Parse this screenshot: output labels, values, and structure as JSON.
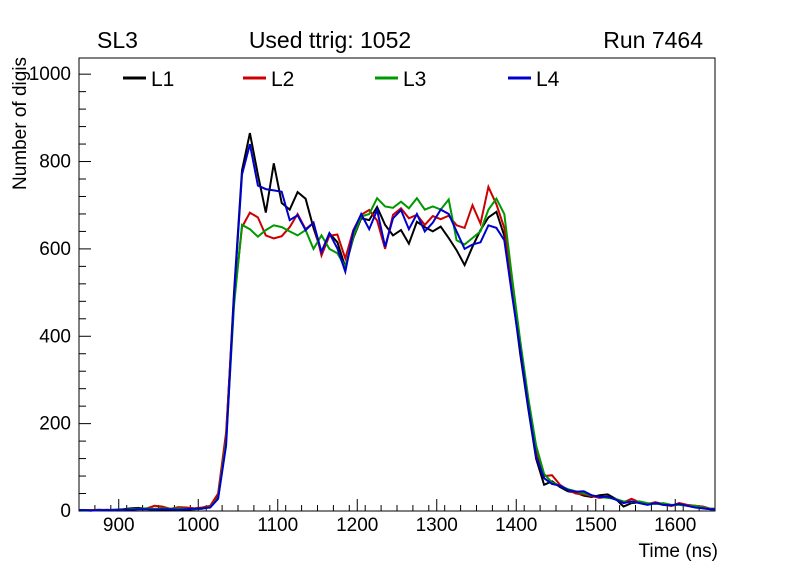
{
  "header": {
    "left": "SL3",
    "center": "Used ttrig: 1052",
    "right": "Run 7464"
  },
  "legend": [
    {
      "label": "L1",
      "color": "#000000"
    },
    {
      "label": "L2",
      "color": "#cc0000"
    },
    {
      "label": "L3",
      "color": "#009900"
    },
    {
      "label": "L4",
      "color": "#0000cc"
    }
  ],
  "chart_data": {
    "type": "line",
    "title": "Used ttrig: 1052",
    "xlabel": "Time (ns)",
    "ylabel": "Number of digis",
    "xlim": [
      850,
      1650
    ],
    "ylim": [
      0,
      1037
    ],
    "x_ticks": [
      900,
      1000,
      1100,
      1200,
      1300,
      1400,
      1500,
      1600
    ],
    "y_ticks": [
      0,
      200,
      400,
      600,
      800,
      1000
    ],
    "x_minor_step": 20,
    "y_minor_step": 40,
    "grid": false,
    "legend_position": "top-inside",
    "x": [
      855,
      865,
      875,
      885,
      895,
      905,
      915,
      925,
      935,
      945,
      955,
      965,
      975,
      985,
      995,
      1005,
      1015,
      1025,
      1035,
      1045,
      1055,
      1065,
      1075,
      1085,
      1095,
      1105,
      1115,
      1125,
      1135,
      1145,
      1155,
      1165,
      1175,
      1185,
      1195,
      1205,
      1215,
      1225,
      1235,
      1245,
      1255,
      1265,
      1275,
      1285,
      1295,
      1305,
      1315,
      1325,
      1335,
      1345,
      1355,
      1365,
      1375,
      1385,
      1395,
      1405,
      1415,
      1425,
      1435,
      1445,
      1455,
      1465,
      1475,
      1485,
      1495,
      1505,
      1515,
      1525,
      1535,
      1545,
      1555,
      1565,
      1575,
      1585,
      1595,
      1605,
      1615,
      1625,
      1635,
      1645
    ],
    "series": [
      {
        "name": "L1",
        "color": "#000000",
        "values": [
          2,
          2,
          3,
          2,
          3,
          4,
          6,
          7,
          5,
          4,
          3,
          3,
          4,
          3,
          4,
          5,
          10,
          35,
          170,
          500,
          780,
          865,
          770,
          683,
          796,
          705,
          690,
          730,
          715,
          648,
          593,
          636,
          615,
          558,
          625,
          670,
          666,
          696,
          655,
          631,
          643,
          612,
          662,
          650,
          640,
          651,
          625,
          597,
          563,
          605,
          643,
          672,
          685,
          630,
          500,
          360,
          235,
          120,
          60,
          68,
          55,
          45,
          42,
          35,
          32,
          36,
          38,
          28,
          10,
          18,
          20,
          15,
          20,
          16,
          12,
          16,
          13,
          10,
          6,
          4
        ]
      },
      {
        "name": "L2",
        "color": "#cc0000",
        "values": [
          1,
          2,
          2,
          3,
          2,
          3,
          4,
          5,
          6,
          12,
          10,
          5,
          9,
          8,
          6,
          8,
          12,
          40,
          180,
          480,
          650,
          683,
          672,
          631,
          624,
          629,
          650,
          680,
          645,
          660,
          585,
          630,
          633,
          578,
          643,
          678,
          689,
          665,
          600,
          678,
          693,
          670,
          678,
          655,
          675,
          668,
          676,
          654,
          648,
          700,
          658,
          742,
          702,
          648,
          520,
          385,
          255,
          140,
          80,
          82,
          60,
          48,
          40,
          38,
          34,
          30,
          32,
          26,
          20,
          28,
          20,
          16,
          20,
          14,
          12,
          18,
          14,
          12,
          10,
          5
        ]
      },
      {
        "name": "L3",
        "color": "#009900",
        "values": [
          1,
          1,
          2,
          2,
          3,
          3,
          4,
          5,
          6,
          5,
          6,
          5,
          6,
          5,
          4,
          6,
          9,
          30,
          160,
          470,
          655,
          645,
          628,
          643,
          654,
          650,
          640,
          631,
          643,
          600,
          631,
          600,
          590,
          559,
          628,
          674,
          680,
          716,
          697,
          694,
          708,
          693,
          716,
          690,
          697,
          690,
          713,
          620,
          610,
          625,
          640,
          690,
          715,
          680,
          530,
          390,
          260,
          150,
          85,
          65,
          58,
          50,
          45,
          40,
          36,
          32,
          30,
          28,
          22,
          20,
          22,
          18,
          16,
          18,
          14,
          14,
          12,
          12,
          8,
          5
        ]
      },
      {
        "name": "L4",
        "color": "#0000cc",
        "values": [
          2,
          1,
          2,
          2,
          2,
          3,
          3,
          4,
          4,
          3,
          4,
          4,
          3,
          4,
          5,
          6,
          8,
          28,
          150,
          490,
          770,
          840,
          745,
          737,
          734,
          731,
          666,
          677,
          643,
          660,
          593,
          636,
          601,
          548,
          640,
          680,
          645,
          689,
          605,
          670,
          689,
          645,
          680,
          640,
          660,
          690,
          680,
          640,
          600,
          610,
          615,
          654,
          648,
          620,
          490,
          370,
          240,
          125,
          75,
          62,
          58,
          48,
          44,
          45,
          36,
          32,
          33,
          26,
          18,
          22,
          18,
          14,
          18,
          14,
          13,
          16,
          12,
          8,
          6,
          4
        ]
      }
    ]
  }
}
